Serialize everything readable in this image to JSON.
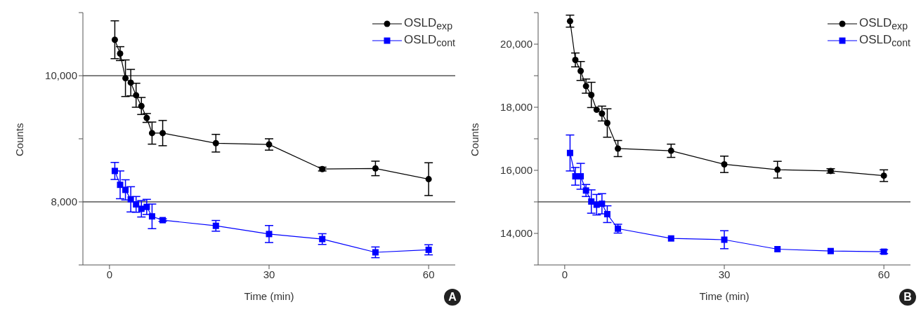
{
  "chart_data": [
    {
      "type": "line",
      "xlabel": "Time (min)",
      "ylabel": "Counts",
      "annotations": [
        "A"
      ],
      "legend": "top right",
      "grid": false,
      "xlim": [
        -5,
        65
      ],
      "xticks": [
        0,
        30,
        60
      ],
      "ylim": [
        7000,
        11000
      ],
      "yticks": [
        {
          "value": 7000,
          "label": null
        },
        {
          "value": 8000,
          "label": "8,000"
        },
        {
          "value": 9000,
          "label": null
        },
        {
          "value": 10000,
          "label": "10,000"
        },
        {
          "value": 11000,
          "label": null
        }
      ],
      "ref_lines": [
        {
          "axis": "y",
          "value": 8000,
          "color": "#000000"
        },
        {
          "axis": "y",
          "value": 10000,
          "color": "#000000"
        }
      ],
      "series": [
        {
          "name": "OSLD$_{exp}$",
          "color": "#000000",
          "marker": "circle",
          "x": [
            1,
            2,
            3,
            4,
            5,
            6,
            7,
            8,
            10,
            20,
            30,
            40,
            50,
            60
          ],
          "values": [
            10570,
            10350,
            9960,
            9890,
            9690,
            9520,
            9330,
            9090,
            9090,
            8930,
            8910,
            8520,
            8530,
            8360
          ],
          "errors": [
            300,
            110,
            290,
            210,
            190,
            135,
            70,
            175,
            200,
            140,
            90,
            30,
            115,
            260
          ]
        },
        {
          "name": "OSLD$_{cont}$",
          "color": "#0000ff",
          "marker": "square",
          "x": [
            1,
            2,
            3,
            4,
            5,
            6,
            7,
            8,
            10,
            20,
            30,
            40,
            50,
            60
          ],
          "values": [
            8490,
            8270,
            8190,
            8040,
            7960,
            7890,
            7920,
            7770,
            7710,
            7620,
            7490,
            7410,
            7200,
            7240
          ],
          "errors": [
            135,
            220,
            160,
            200,
            125,
            130,
            120,
            195,
            20,
            85,
            135,
            85,
            85,
            80
          ]
        }
      ]
    },
    {
      "type": "line",
      "xlabel": "Time (min)",
      "ylabel": "Counts",
      "annotations": [
        "B"
      ],
      "legend": "top right",
      "grid": false,
      "xlim": [
        -5,
        65
      ],
      "xticks": [
        0,
        30,
        60
      ],
      "ylim": [
        13000,
        21000
      ],
      "yticks": [
        {
          "value": 13000,
          "label": null
        },
        {
          "value": 14000,
          "label": "14,000"
        },
        {
          "value": 15000,
          "label": null
        },
        {
          "value": 16000,
          "label": "16,000"
        },
        {
          "value": 17000,
          "label": null
        },
        {
          "value": 18000,
          "label": "18,000"
        },
        {
          "value": 19000,
          "label": null
        },
        {
          "value": 20000,
          "label": "20,000"
        },
        {
          "value": 21000,
          "label": null
        }
      ],
      "ref_lines": [
        {
          "axis": "y",
          "value": 15000,
          "color": "#000000"
        }
      ],
      "series": [
        {
          "name": "OSLD$_{exp}$",
          "color": "#000000",
          "marker": "circle",
          "x": [
            1,
            2,
            3,
            4,
            5,
            6,
            7,
            8,
            10,
            20,
            30,
            40,
            50,
            60
          ],
          "values": [
            20730,
            19500,
            19150,
            18670,
            18390,
            17920,
            17800,
            17500,
            16690,
            16620,
            16190,
            16020,
            15980,
            15830
          ],
          "errors": [
            190,
            220,
            300,
            225,
            400,
            null,
            235,
            450,
            255,
            210,
            260,
            265,
            70,
            185
          ]
        },
        {
          "name": "OSLD$_{cont}$",
          "color": "#0000ff",
          "marker": "square",
          "x": [
            1,
            2,
            3,
            4,
            5,
            6,
            7,
            8,
            10,
            20,
            30,
            40,
            50,
            60
          ],
          "values": [
            16550,
            15810,
            15810,
            15360,
            15010,
            14910,
            14940,
            14610,
            14150,
            13840,
            13800,
            13500,
            13440,
            13420
          ],
          "errors": [
            570,
            280,
            410,
            190,
            370,
            325,
            320,
            265,
            140,
            null,
            285,
            null,
            null,
            60
          ]
        }
      ]
    }
  ]
}
